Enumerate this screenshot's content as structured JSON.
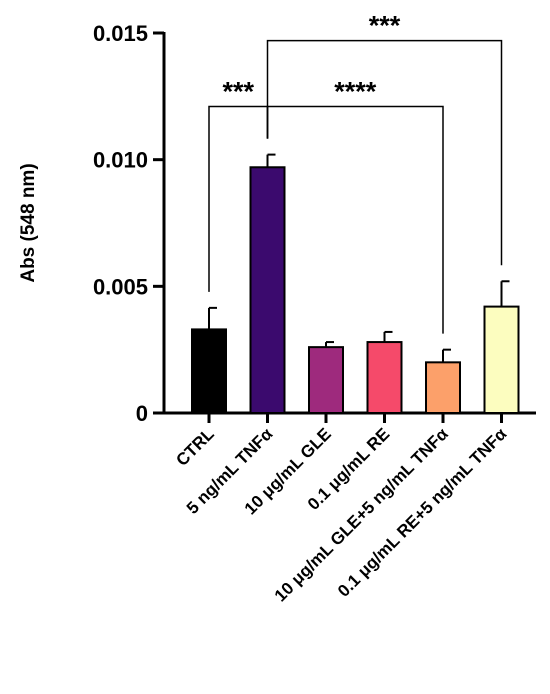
{
  "chart_data": {
    "type": "bar",
    "ylabel": "Abs (548 nm)",
    "ylim": [
      0,
      0.015
    ],
    "yticks": [
      0,
      0.005,
      0.01,
      0.015
    ],
    "ytick_labels": [
      "0",
      "0.005",
      "0.010",
      "0.015"
    ],
    "grid": false,
    "legend": "none",
    "categories": [
      "CTRL",
      "5 ng/mL TNFα",
      "10 μg/mL GLE",
      "0.1 μg/mL RE",
      "10 μg/mL GLE+5 ng/mL TNFα",
      "0.1 μg/mL RE+5 ng/mL TNFα"
    ],
    "values": [
      0.0033,
      0.0097,
      0.0026,
      0.0028,
      0.002,
      0.0042
    ],
    "errors": [
      0.00085,
      0.0005,
      0.0002,
      0.0004,
      0.0005,
      0.001
    ],
    "colors": [
      "#000000",
      "#3b0a6e",
      "#9e2a7d",
      "#f54a6a",
      "#fca06a",
      "#fcfdbf"
    ],
    "significance": [
      {
        "from": 0,
        "to": 1,
        "label": "***",
        "y": 0.0121
      },
      {
        "from": 1,
        "to": 4,
        "label": "****",
        "y": 0.0121
      },
      {
        "from": 1,
        "to": 5,
        "label": "***",
        "y": 0.0147
      }
    ]
  }
}
